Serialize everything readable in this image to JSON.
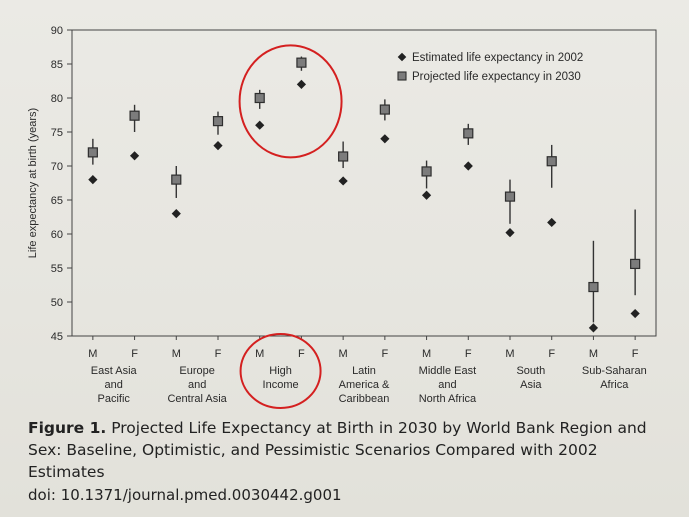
{
  "caption": {
    "label": "Figure 1.",
    "text": " Projected Life Expectancy at Birth in 2030 by World Bank Region and Sex: Baseline, Optimistic, and Pessimistic Scenarios Compared with 2002 Estimates",
    "doi": "doi: 10.1371/journal.pmed.0030442.g001"
  },
  "chart_data": {
    "type": "scatter",
    "ylabel": "Life expectancy at birth (years)",
    "ylim": [
      45,
      90
    ],
    "yticks": [
      45,
      50,
      55,
      60,
      65,
      70,
      75,
      80,
      85,
      90
    ],
    "legend_position": "top-right",
    "groups": [
      {
        "name": [
          "East Asia",
          "and",
          "Pacific"
        ],
        "sexes": [
          "M",
          "F"
        ]
      },
      {
        "name": [
          "Europe",
          "and",
          "Central Asia"
        ],
        "sexes": [
          "M",
          "F"
        ]
      },
      {
        "name": [
          "High",
          "Income"
        ],
        "sexes": [
          "M",
          "F"
        ]
      },
      {
        "name": [
          "Latin",
          "America &",
          "Caribbean"
        ],
        "sexes": [
          "M",
          "F"
        ]
      },
      {
        "name": [
          "Middle East",
          "and",
          "North Africa"
        ],
        "sexes": [
          "M",
          "F"
        ]
      },
      {
        "name": [
          "South",
          "Asia"
        ],
        "sexes": [
          "M",
          "F"
        ]
      },
      {
        "name": [
          "Sub-Saharan",
          "Africa"
        ],
        "sexes": [
          "M",
          "F"
        ]
      }
    ],
    "series": [
      {
        "name": "Estimated life expectancy in 2002",
        "marker": "diamond",
        "values": [
          68.0,
          71.5,
          63.0,
          73.0,
          76.0,
          82.0,
          67.8,
          74.0,
          65.7,
          70.0,
          60.2,
          61.7,
          46.2,
          48.3
        ]
      },
      {
        "name": "Projected life expectancy in 2030",
        "marker": "square",
        "values": [
          72.0,
          77.4,
          68.0,
          76.6,
          80.0,
          85.2,
          71.4,
          78.3,
          69.2,
          74.8,
          65.5,
          70.7,
          52.2,
          55.6
        ],
        "low": [
          70.2,
          75.0,
          65.3,
          74.6,
          78.4,
          84.0,
          69.7,
          76.7,
          66.7,
          73.1,
          61.5,
          66.8,
          47.0,
          51.0
        ],
        "high": [
          74.0,
          79.0,
          70.0,
          78.0,
          81.2,
          86.1,
          73.6,
          79.8,
          70.8,
          76.2,
          68.0,
          73.1,
          59.0,
          63.6
        ]
      }
    ],
    "highlights": [
      {
        "target": "High Income data points",
        "shape": "ellipse",
        "color": "#d42020"
      },
      {
        "target": "High Income label",
        "shape": "ellipse",
        "color": "#d42020"
      }
    ]
  }
}
